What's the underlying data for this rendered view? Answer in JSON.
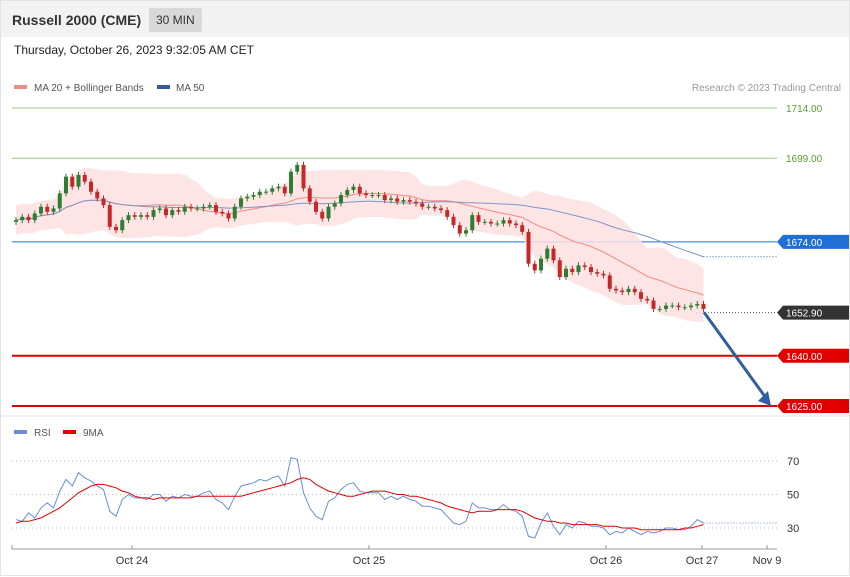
{
  "header": {
    "title": "Russell 2000 (CME)",
    "timeframe": "30 MIN",
    "datetime": "Thursday, October 26, 2023 9:32:05 AM CET"
  },
  "legend": {
    "items": [
      {
        "label": "MA 20 + Bollinger Bands",
        "color": "#f28b82"
      },
      {
        "label": "MA 50",
        "color": "#2f5f9e"
      }
    ],
    "copyright": "Research © 2023 Trading Central"
  },
  "rsi_legend": {
    "items": [
      {
        "label": "RSI",
        "color": "#6a8fd8"
      },
      {
        "label": "9MA",
        "color": "#e00000"
      }
    ]
  },
  "colors": {
    "up_candle": "#2e7d32",
    "down_candle": "#c62828",
    "resistance": "#9bc97d",
    "pivot": "#1f6fd6",
    "support": "#e00000",
    "forecast_arrow": "#2f5f9e",
    "current_price_tag": "#333333"
  },
  "chart_data": [
    {
      "type": "candlestick",
      "title": "Russell 2000 (CME)",
      "timeframe": "30 MIN",
      "x_ticks": [
        "Oct 24",
        "Oct 25",
        "Oct 26",
        "Oct 27",
        "Nov 9"
      ],
      "ylim": [
        1621,
        1720
      ],
      "levels": [
        {
          "value": 1714.0,
          "label": "1714.00",
          "kind": "resistance"
        },
        {
          "value": 1699.0,
          "label": "1699.00",
          "kind": "resistance"
        },
        {
          "value": 1674.0,
          "label": "1674.00",
          "kind": "pivot"
        },
        {
          "value": 1640.0,
          "label": "1640.00",
          "kind": "support"
        },
        {
          "value": 1625.0,
          "label": "1625.00",
          "kind": "support"
        }
      ],
      "current_price": {
        "value": 1652.9,
        "label": "1652.90"
      },
      "forecast": {
        "from": 1653.0,
        "to": 1625.0
      },
      "close": [
        1680.5,
        1681.5,
        1680.5,
        1682.5,
        1684.5,
        1683.0,
        1684.0,
        1688.5,
        1693.5,
        1690.5,
        1694.0,
        1692.0,
        1689.0,
        1687.0,
        1685.0,
        1678.5,
        1677.5,
        1680.5,
        1682.0,
        1681.5,
        1682.0,
        1681.5,
        1683.5,
        1684.0,
        1682.0,
        1683.5,
        1683.0,
        1684.5,
        1684.0,
        1684.0,
        1684.5,
        1685.0,
        1683.0,
        1682.5,
        1681.0,
        1684.5,
        1687.0,
        1687.5,
        1688.0,
        1689.0,
        1689.0,
        1690.0,
        1690.5,
        1688.5,
        1695.0,
        1697.0,
        1690.0,
        1686.0,
        1683.0,
        1681.0,
        1684.5,
        1685.5,
        1688.0,
        1689.5,
        1690.5,
        1688.5,
        1688.0,
        1688.0,
        1688.0,
        1686.5,
        1687.0,
        1686.0,
        1686.5,
        1686.0,
        1685.5,
        1684.5,
        1684.5,
        1684.0,
        1683.5,
        1681.5,
        1679.0,
        1676.5,
        1677.5,
        1682.0,
        1680.0,
        1680.0,
        1679.5,
        1679.5,
        1680.5,
        1679.5,
        1679.0,
        1677.0,
        1667.5,
        1665.5,
        1669.0,
        1672.0,
        1668.5,
        1663.5,
        1666.0,
        1665.0,
        1667.0,
        1666.5,
        1665.0,
        1664.5,
        1664.0,
        1660.0,
        1659.5,
        1659.0,
        1660.0,
        1659.0,
        1657.0,
        1656.5,
        1654.0,
        1654.0,
        1655.0,
        1655.0,
        1654.5,
        1654.5,
        1655.0,
        1655.5,
        1654.0
      ],
      "rsi": {
        "levels": [
          30,
          50,
          70
        ],
        "rsi": [
          35,
          34,
          39,
          36,
          42,
          45,
          42,
          52,
          59,
          55,
          63,
          60,
          58,
          55,
          53,
          40,
          37,
          47,
          50,
          48,
          48,
          47,
          50,
          50,
          46,
          49,
          48,
          50,
          49,
          49,
          51,
          52,
          47,
          45,
          41,
          49,
          55,
          56,
          57,
          59,
          58,
          60,
          61,
          55,
          72,
          71,
          51,
          42,
          37,
          35,
          46,
          48,
          53,
          56,
          57,
          52,
          51,
          51,
          51,
          47,
          49,
          47,
          49,
          47,
          46,
          43,
          43,
          42,
          41,
          37,
          33,
          32,
          34,
          45,
          42,
          42,
          41,
          41,
          44,
          41,
          40,
          37,
          25,
          24,
          33,
          39,
          31,
          26,
          32,
          30,
          34,
          33,
          31,
          31,
          30,
          26,
          28,
          27,
          30,
          28,
          26,
          28,
          27,
          28,
          30,
          30,
          29,
          29,
          31,
          35,
          33
        ],
        "ma9": [
          33,
          34,
          34,
          35,
          36,
          38,
          40,
          42,
          45,
          48,
          51,
          53,
          55,
          56,
          56,
          55,
          54,
          52,
          51,
          49,
          48,
          48,
          47,
          48,
          48,
          48,
          48,
          48,
          48,
          49,
          49,
          49,
          49,
          49,
          49,
          49,
          49,
          50,
          51,
          52,
          53,
          54,
          55,
          56,
          57,
          59,
          60,
          59,
          56,
          54,
          52,
          51,
          50,
          49,
          49,
          50,
          51,
          52,
          52,
          52,
          51,
          50,
          50,
          49,
          49,
          48,
          47,
          46,
          45,
          43,
          42,
          41,
          40,
          39,
          40,
          40,
          40,
          41,
          41,
          41,
          41,
          40,
          38,
          36,
          35,
          34,
          34,
          33,
          33,
          32,
          32,
          32,
          32,
          32,
          31,
          31,
          31,
          30,
          30,
          30,
          29,
          29,
          29,
          29,
          29,
          29,
          29,
          30,
          30,
          31,
          32
        ]
      }
    }
  ]
}
